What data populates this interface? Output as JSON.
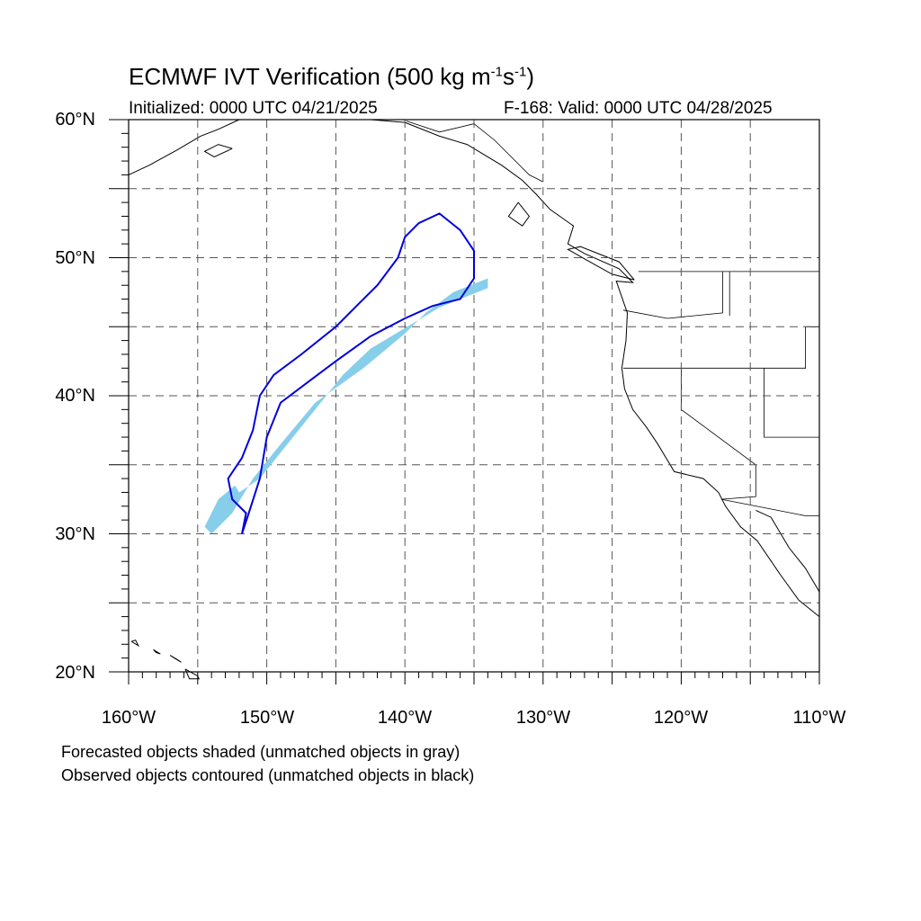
{
  "title": {
    "main": "ECMWF IVT Verification (500 kg m",
    "sup1": "-1",
    "mid": "s",
    "sup2": "-1",
    "end": ")"
  },
  "subtitle_left": "Initialized: 0000 UTC 04/21/2025",
  "subtitle_right": "F-168: Valid: 0000 UTC 04/28/2025",
  "lat_labels": [
    "60°N",
    "50°N",
    "40°N",
    "30°N",
    "20°N"
  ],
  "lon_labels": [
    "160°W",
    "150°W",
    "140°W",
    "130°W",
    "120°W",
    "110°W"
  ],
  "caption_forecast": "Forecasted objects shaded (unmatched objects in gray)",
  "caption_observed": "Observed objects contoured (unmatched objects in black)",
  "colors": {
    "forecast_fill": "#87CEEB",
    "observed_contour": "#0000DD",
    "coast": "#000000",
    "grid": "#555555"
  },
  "map_extent": {
    "lon_min": -160,
    "lon_max": -110,
    "lat_min": 20,
    "lat_max": 60
  },
  "forecast_object": [
    [
      -154,
      30
    ],
    [
      -152.5,
      31.5
    ],
    [
      -151,
      34
    ],
    [
      -149,
      36.5
    ],
    [
      -146.5,
      39.5
    ],
    [
      -143,
      42
    ],
    [
      -140,
      44.5
    ],
    [
      -138.5,
      46
    ],
    [
      -136.5,
      47.5
    ],
    [
      -134,
      48.5
    ],
    [
      -134,
      47.8
    ],
    [
      -135.5,
      47.2
    ],
    [
      -137.5,
      46.4
    ],
    [
      -139,
      45.5
    ],
    [
      -140.5,
      44.6
    ],
    [
      -142.5,
      43.4
    ],
    [
      -144.5,
      41.5
    ],
    [
      -146.5,
      39.0
    ],
    [
      -148.5,
      36.5
    ],
    [
      -150.5,
      34.0
    ],
    [
      -152,
      33.0
    ],
    [
      -152.3,
      33.5
    ],
    [
      -153.5,
      32.5
    ],
    [
      -154.5,
      30.5
    ],
    [
      -154,
      30
    ]
  ],
  "observed_object": [
    [
      -151.8,
      30
    ],
    [
      -151.3,
      31.5
    ],
    [
      -150.5,
      34
    ],
    [
      -150,
      37
    ],
    [
      -149,
      39.5
    ],
    [
      -147,
      41.0
    ],
    [
      -145,
      42.5
    ],
    [
      -142.5,
      44.3
    ],
    [
      -140,
      45.6
    ],
    [
      -138,
      46.5
    ],
    [
      -136,
      47.0
    ],
    [
      -135,
      48.5
    ],
    [
      -135,
      50.5
    ],
    [
      -136,
      52
    ],
    [
      -137.5,
      53.2
    ],
    [
      -139,
      52.5
    ],
    [
      -140,
      51.5
    ],
    [
      -140.5,
      50.0
    ],
    [
      -142,
      48.0
    ],
    [
      -143.5,
      46.5
    ],
    [
      -145,
      45.0
    ],
    [
      -147.5,
      43.0
    ],
    [
      -149.5,
      41.5
    ],
    [
      -150.5,
      40.0
    ],
    [
      -151.0,
      37.5
    ],
    [
      -151.8,
      35.5
    ],
    [
      -152.8,
      34.0
    ],
    [
      -152.5,
      32.5
    ],
    [
      -151.5,
      31.5
    ],
    [
      -151.8,
      30
    ]
  ]
}
